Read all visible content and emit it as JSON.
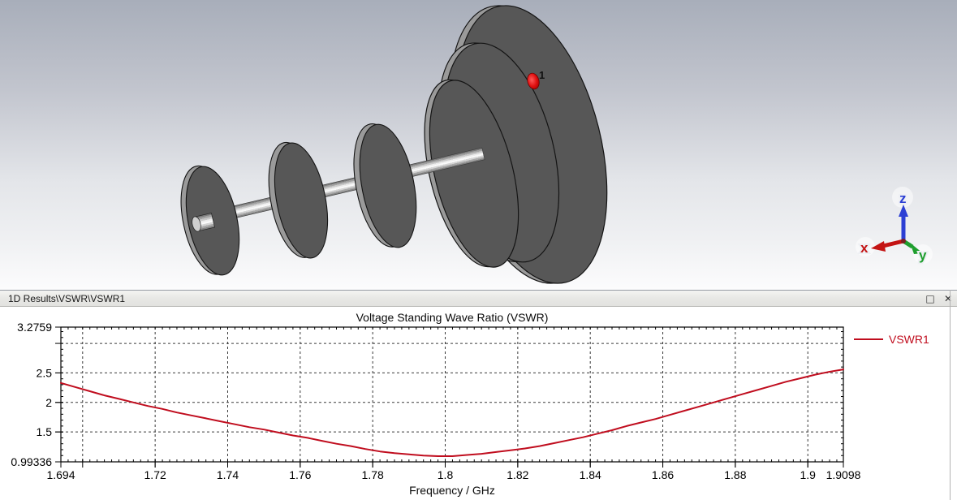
{
  "viewport3d": {
    "port": {
      "label": "1"
    },
    "axis_triad": {
      "x_label": "x",
      "y_label": "y",
      "z_label": "z",
      "x_color": "#c41414",
      "y_color": "#1f9e2e",
      "z_color": "#2c3fd4"
    }
  },
  "results_window": {
    "title": "1D Results\\VSWR\\VSWR1",
    "maximize_glyph": "□",
    "close_glyph": "✕"
  },
  "chart_data": {
    "type": "line",
    "title": "Voltage Standing Wave Ratio (VSWR)",
    "xlabel": "Frequency / GHz",
    "ylabel": "",
    "xlim": [
      1.694,
      1.9098
    ],
    "ylim": [
      0.99336,
      3.2759
    ],
    "grid": true,
    "legend_position": "top-right-outside",
    "grid_x": [
      1.7,
      1.72,
      1.74,
      1.76,
      1.78,
      1.8,
      1.82,
      1.84,
      1.86,
      1.88,
      1.9
    ],
    "grid_y": [
      3.0,
      2.5,
      2.0,
      1.5
    ],
    "minor_tick_step_x": 0.002,
    "minor_tick_step_y": 0.1,
    "x_ticks": [
      {
        "value": 1.694,
        "label": "1.694"
      },
      {
        "value": 1.72,
        "label": "1.72"
      },
      {
        "value": 1.74,
        "label": "1.74"
      },
      {
        "value": 1.76,
        "label": "1.76"
      },
      {
        "value": 1.78,
        "label": "1.78"
      },
      {
        "value": 1.8,
        "label": "1.8"
      },
      {
        "value": 1.82,
        "label": "1.82"
      },
      {
        "value": 1.84,
        "label": "1.84"
      },
      {
        "value": 1.86,
        "label": "1.86"
      },
      {
        "value": 1.88,
        "label": "1.88"
      },
      {
        "value": 1.9,
        "label": "1.9"
      },
      {
        "value": 1.9098,
        "label": "1.9098"
      }
    ],
    "y_ticks": [
      {
        "value": 3.2759,
        "label": "3.2759"
      },
      {
        "value": 2.5,
        "label": "2.5"
      },
      {
        "value": 2.0,
        "label": "2"
      },
      {
        "value": 1.5,
        "label": "1.5"
      },
      {
        "value": 0.99336,
        "label": "0.99336"
      }
    ],
    "legend": {
      "label": "VSWR1",
      "color": "#c00d1e"
    },
    "series": [
      {
        "name": "VSWR1",
        "color": "#c00d1e",
        "x": [
          1.694,
          1.698,
          1.702,
          1.706,
          1.71,
          1.714,
          1.718,
          1.722,
          1.726,
          1.73,
          1.734,
          1.738,
          1.742,
          1.746,
          1.75,
          1.754,
          1.758,
          1.762,
          1.766,
          1.77,
          1.774,
          1.778,
          1.782,
          1.786,
          1.79,
          1.794,
          1.798,
          1.802,
          1.806,
          1.81,
          1.814,
          1.818,
          1.822,
          1.826,
          1.83,
          1.834,
          1.838,
          1.842,
          1.846,
          1.85,
          1.854,
          1.858,
          1.862,
          1.866,
          1.87,
          1.874,
          1.878,
          1.882,
          1.886,
          1.89,
          1.894,
          1.898,
          1.902,
          1.906,
          1.9098
        ],
        "y": [
          2.33,
          2.26,
          2.19,
          2.12,
          2.06,
          2.0,
          1.94,
          1.89,
          1.83,
          1.78,
          1.73,
          1.68,
          1.63,
          1.58,
          1.54,
          1.49,
          1.44,
          1.4,
          1.35,
          1.3,
          1.26,
          1.21,
          1.17,
          1.14,
          1.12,
          1.1,
          1.09,
          1.09,
          1.11,
          1.13,
          1.16,
          1.19,
          1.22,
          1.26,
          1.31,
          1.36,
          1.41,
          1.47,
          1.53,
          1.6,
          1.66,
          1.72,
          1.79,
          1.86,
          1.93,
          2.0,
          2.07,
          2.14,
          2.21,
          2.28,
          2.35,
          2.41,
          2.47,
          2.52,
          2.56
        ]
      }
    ]
  }
}
